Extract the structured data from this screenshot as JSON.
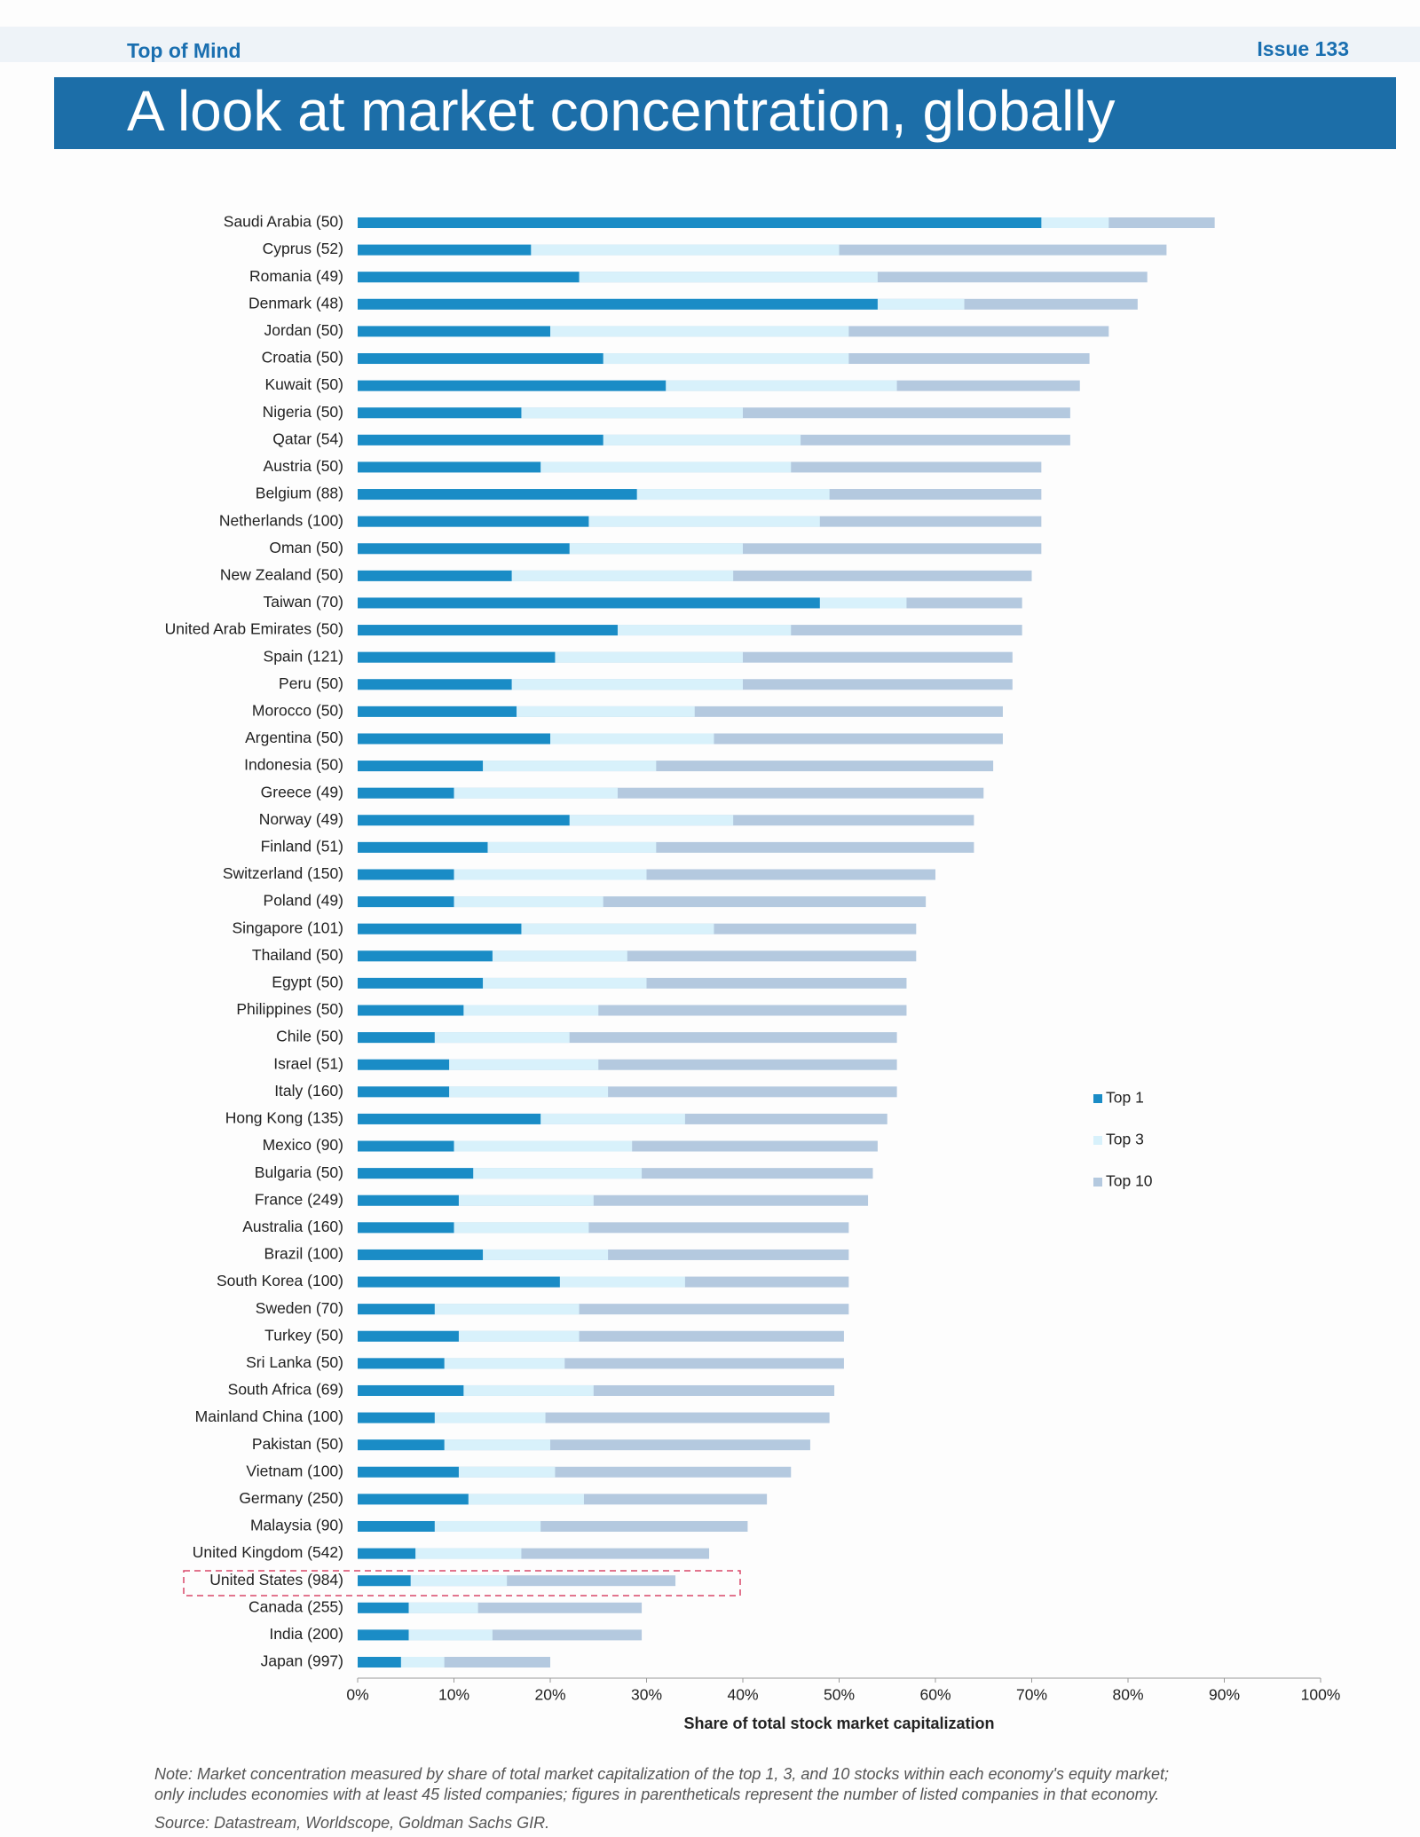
{
  "header": {
    "left": "Top of Mind",
    "right": "Issue 133",
    "title": "A look at market concentration, globally"
  },
  "chart_data": {
    "type": "overlap_hbar",
    "xlabel": "Share of total stock market capitalization",
    "categories": [
      "Saudi Arabia (50)",
      "Cyprus (52)",
      "Romania (49)",
      "Denmark (48)",
      "Jordan (50)",
      "Croatia (50)",
      "Kuwait (50)",
      "Nigeria (50)",
      "Qatar (54)",
      "Austria (50)",
      "Belgium (88)",
      "Netherlands (100)",
      "Oman (50)",
      "New Zealand (50)",
      "Taiwan (70)",
      "United Arab Emirates (50)",
      "Spain (121)",
      "Peru (50)",
      "Morocco (50)",
      "Argentina (50)",
      "Indonesia (50)",
      "Greece (49)",
      "Norway (49)",
      "Finland (51)",
      "Switzerland (150)",
      "Poland (49)",
      "Singapore (101)",
      "Thailand (50)",
      "Egypt (50)",
      "Philippines (50)",
      "Chile (50)",
      "Israel (51)",
      "Italy (160)",
      "Hong Kong (135)",
      "Mexico (90)",
      "Bulgaria (50)",
      "France (249)",
      "Australia (160)",
      "Brazil (100)",
      "South Korea (100)",
      "Sweden (70)",
      "Turkey (50)",
      "Sri Lanka (50)",
      "South Africa (69)",
      "Mainland China (100)",
      "Pakistan (50)",
      "Vietnam (100)",
      "Germany (250)",
      "Malaysia (90)",
      "United Kingdom (542)",
      "United States (984)",
      "Canada (255)",
      "India (200)",
      "Japan (997)"
    ],
    "series": [
      {
        "name": "Top 10",
        "color": "#b4c9df",
        "values": [
          89,
          84,
          82,
          81,
          78,
          76,
          75,
          74,
          74,
          71,
          71,
          71,
          71,
          70,
          69,
          69,
          68,
          68,
          67,
          67,
          66,
          65,
          64,
          64,
          60,
          59,
          58,
          58,
          57,
          57,
          56,
          56,
          56,
          55,
          54,
          53.5,
          53,
          51,
          51,
          51,
          51,
          50.5,
          50.5,
          49.5,
          49,
          47,
          45,
          42.5,
          40.5,
          36.5,
          33,
          29.5,
          29.5,
          20
        ]
      },
      {
        "name": "Top 3",
        "color": "#d8f1fb",
        "values": [
          78,
          50,
          54,
          63,
          51,
          51,
          56,
          40,
          46,
          45,
          49,
          48,
          40,
          39,
          57,
          45,
          40,
          40,
          35,
          37,
          31,
          27,
          39,
          31,
          30,
          25.5,
          37,
          28,
          30,
          25,
          22,
          25,
          26,
          34,
          28.5,
          29.5,
          24.5,
          24,
          26,
          34,
          23,
          23,
          21.5,
          24.5,
          19.5,
          20,
          20.5,
          23.5,
          19,
          17,
          15.5,
          12.5,
          14,
          9
        ]
      },
      {
        "name": "Top 1",
        "color": "#1a8cc6",
        "values": [
          71,
          18,
          23,
          54,
          20,
          25.5,
          32,
          17,
          25.5,
          19,
          29,
          24,
          22,
          16,
          48,
          27,
          20.5,
          16,
          16.5,
          20,
          13,
          10,
          22,
          13.5,
          10,
          10,
          17,
          14,
          13,
          11,
          8,
          9.5,
          9.5,
          19,
          10,
          12,
          10.5,
          10,
          13,
          21,
          8,
          10.5,
          9,
          11,
          8,
          9,
          10.5,
          11.5,
          8,
          6,
          5.5,
          5.3,
          5.3,
          4.5
        ]
      }
    ],
    "xlim": [
      0,
      100
    ],
    "xticks": [
      {
        "value": 0,
        "label": "0%"
      },
      {
        "value": 10,
        "label": "10%"
      },
      {
        "value": 20,
        "label": "20%"
      },
      {
        "value": 30,
        "label": "30%"
      },
      {
        "value": 40,
        "label": "40%"
      },
      {
        "value": 50,
        "label": "50%"
      },
      {
        "value": 60,
        "label": "60%"
      },
      {
        "value": 70,
        "label": "70%"
      },
      {
        "value": 80,
        "label": "80%"
      },
      {
        "value": 90,
        "label": "90%"
      },
      {
        "value": 100,
        "label": "100%"
      }
    ],
    "legend": "right"
  },
  "note_lines": [
    "Note: Market concentration measured by share of total market capitalization of the top 1, 3, and 10 stocks within each economy's equity market;",
    "only includes economies with at least 45 listed companies; figures in parentheticals represent the number of listed companies in that economy."
  ],
  "source": "Source: Datastream, Worldscope, Goldman Sachs GIR."
}
